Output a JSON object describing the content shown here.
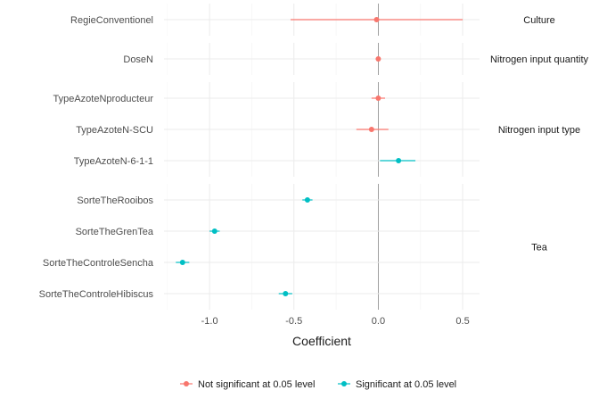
{
  "chart_data": {
    "type": "scatter",
    "xlabel": "Coefficient",
    "ylabel": "",
    "title": "",
    "xlim": [
      -1.27,
      0.6
    ],
    "x_ticks": [
      -1.0,
      -0.5,
      0.0,
      0.5
    ],
    "x_tick_labels": [
      "-1.0",
      "-0.5",
      "0.0",
      "0.5"
    ],
    "reference_line": 0,
    "grid": true,
    "legend": {
      "placement": "bottom",
      "entries": [
        {
          "label": "Not significant at 0.05 level",
          "color": "#F8766D"
        },
        {
          "label": "Significant at 0.05 level",
          "color": "#00BFC4"
        }
      ]
    },
    "panels": [
      {
        "label": "Culture",
        "terms": [
          {
            "term": "RegieConventionel",
            "estimate": -0.01,
            "low": -0.52,
            "high": 0.5,
            "significant": false
          }
        ]
      },
      {
        "label": "Nitrogen input quantity",
        "terms": [
          {
            "term": "DoseN",
            "estimate": 0.0,
            "low": -0.01,
            "high": 0.01,
            "significant": false
          }
        ]
      },
      {
        "label": "Nitrogen input type",
        "terms": [
          {
            "term": "TypeAzoteNproducteur",
            "estimate": 0.0,
            "low": -0.04,
            "high": 0.04,
            "significant": false
          },
          {
            "term": "TypeAzoteN-SCU",
            "estimate": -0.04,
            "low": -0.13,
            "high": 0.06,
            "significant": false
          },
          {
            "term": "TypeAzoteN-6-1-1",
            "estimate": 0.12,
            "low": 0.01,
            "high": 0.22,
            "significant": true
          }
        ]
      },
      {
        "label": "Tea",
        "terms": [
          {
            "term": "SorteTheRooibos",
            "estimate": -0.42,
            "low": -0.45,
            "high": -0.39,
            "significant": true
          },
          {
            "term": "SorteTheGrenTea",
            "estimate": -0.97,
            "low": -1.0,
            "high": -0.94,
            "significant": true
          },
          {
            "term": "SorteTheControleSencha",
            "estimate": -1.16,
            "low": -1.2,
            "high": -1.12,
            "significant": true
          },
          {
            "term": "SorteTheControleHibiscus",
            "estimate": -0.55,
            "low": -0.59,
            "high": -0.51,
            "significant": true
          }
        ]
      }
    ]
  }
}
